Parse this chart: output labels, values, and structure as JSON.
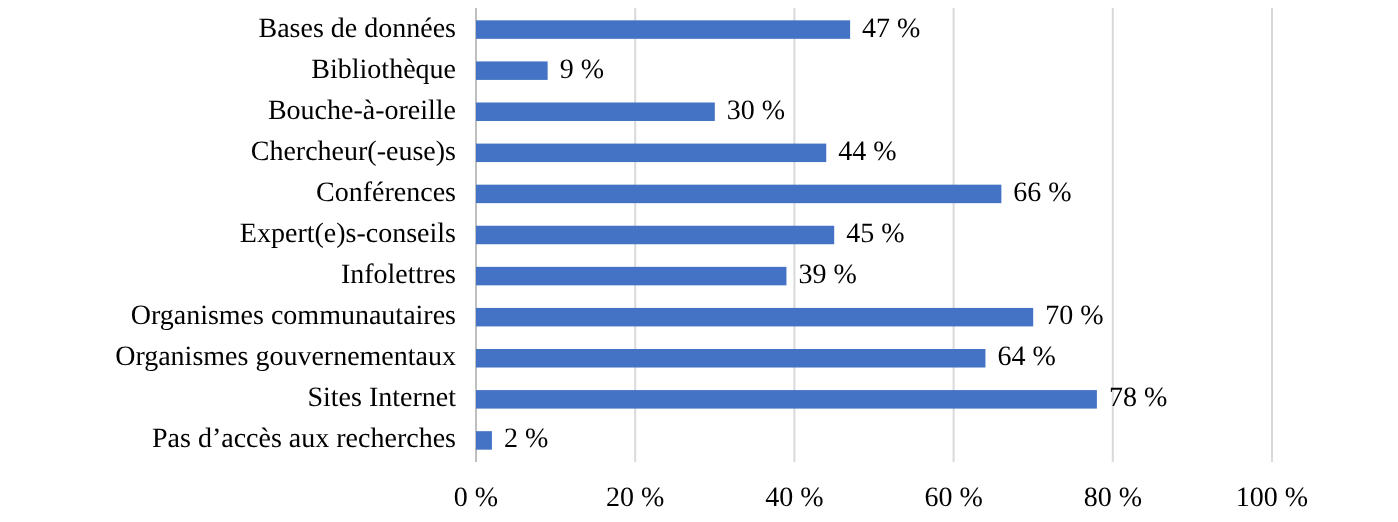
{
  "chart_data": {
    "type": "bar",
    "orientation": "horizontal",
    "categories": [
      "Bases de données",
      "Bibliothèque",
      "Bouche-à-oreille",
      "Chercheur(-euse)s",
      "Conférences",
      "Expert(e)s-conseils",
      "Infolettres",
      "Organismes communautaires",
      "Organismes gouvernementaux",
      "Sites Internet",
      "Pas d’accès aux recherches"
    ],
    "values": [
      47,
      9,
      30,
      44,
      66,
      45,
      39,
      70,
      64,
      78,
      2
    ],
    "value_labels": [
      "47 %",
      "9 %",
      "30 %",
      "44 %",
      "66 %",
      "45 %",
      "39 %",
      "70 %",
      "64 %",
      "78 %",
      "2 %"
    ],
    "color": "#4472c4",
    "xlim": [
      0,
      100
    ],
    "xticks": [
      {
        "value": 0,
        "label": "0 %"
      },
      {
        "value": 20,
        "label": "20 %"
      },
      {
        "value": 40,
        "label": "40 %"
      },
      {
        "value": 60,
        "label": "60 %"
      },
      {
        "value": 80,
        "label": "80 %"
      },
      {
        "value": 100,
        "label": "100 %"
      }
    ],
    "grid": "x"
  }
}
